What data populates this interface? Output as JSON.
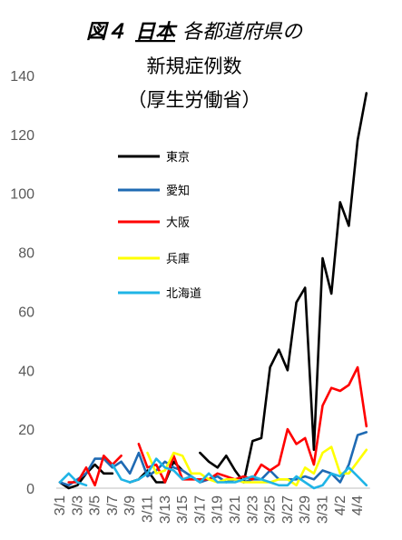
{
  "chart_data": {
    "type": "line",
    "title": {
      "fig_label": "図４",
      "country": "日本",
      "rest": "各都道府県の",
      "line2": "新規症例数",
      "line3": "（厚生労働省）"
    },
    "xlabel": "",
    "ylabel": "",
    "ylim": [
      0,
      140
    ],
    "yticks": [
      0,
      20,
      40,
      60,
      80,
      100,
      120,
      140
    ],
    "grid": false,
    "legend_position": "left-inside",
    "x": [
      "3/1",
      "3/2",
      "3/3",
      "3/4",
      "3/5",
      "3/6",
      "3/7",
      "3/8",
      "3/9",
      "3/10",
      "3/11",
      "3/12",
      "3/13",
      "3/14",
      "3/15",
      "3/16",
      "3/17",
      "3/18",
      "3/19",
      "3/20",
      "3/21",
      "3/22",
      "3/23",
      "3/24",
      "3/25",
      "3/26",
      "3/27",
      "3/28",
      "3/29",
      "3/30",
      "3/31",
      "4/1",
      "4/2",
      "4/3",
      "4/4",
      "4/5"
    ],
    "x_tick_labels": [
      "3/1",
      "3/3",
      "3/5",
      "3/7",
      "3/9",
      "3/11",
      "3/13",
      "3/15",
      "3/17",
      "3/19",
      "3/21",
      "3/23",
      "3/25",
      "3/27",
      "3/29",
      "3/31",
      "4/2",
      "4/4"
    ],
    "series": [
      {
        "name": "東京",
        "color": "#000000",
        "values": [
          2,
          0,
          1,
          5,
          8,
          5,
          5,
          null,
          2,
          3,
          6,
          2,
          2,
          9,
          6,
          null,
          12,
          9,
          7,
          11,
          6,
          2,
          16,
          17,
          41,
          47,
          40,
          63,
          68,
          13,
          78,
          66,
          97,
          89,
          118,
          134
        ]
      },
      {
        "name": "愛知",
        "color": "#1f6ab3",
        "values": [
          2,
          1,
          3,
          5,
          10,
          10,
          7,
          9,
          5,
          12,
          4,
          6,
          9,
          7,
          6,
          4,
          2,
          3,
          4,
          2,
          3,
          2,
          3,
          3,
          6,
          3,
          3,
          3,
          4,
          3,
          6,
          5,
          2,
          8,
          18,
          19
        ]
      },
      {
        "name": "大阪",
        "color": "#ff0000",
        "values": [
          null,
          2,
          2,
          7,
          1,
          11,
          8,
          11,
          null,
          15,
          7,
          8,
          2,
          11,
          3,
          3,
          3,
          3,
          5,
          4,
          3,
          4,
          3,
          8,
          6,
          8,
          20,
          15,
          17,
          8,
          28,
          34,
          33,
          35,
          41,
          21
        ]
      },
      {
        "name": "兵庫",
        "color": "#ffff00",
        "values": [
          null,
          null,
          null,
          null,
          null,
          null,
          null,
          null,
          null,
          null,
          12,
          5,
          6,
          12,
          11,
          5,
          5,
          3,
          2,
          3,
          3,
          2,
          2,
          2,
          2,
          3,
          3,
          1,
          7,
          5,
          12,
          14,
          5,
          5,
          9,
          13
        ]
      },
      {
        "name": "北海道",
        "color": "#1fb4e6",
        "values": [
          2,
          5,
          2,
          1,
          null,
          null,
          8,
          3,
          2,
          3,
          5,
          10,
          7,
          6,
          3,
          4,
          2,
          5,
          2,
          2,
          2,
          3,
          4,
          3,
          2,
          1,
          1,
          4,
          2,
          0,
          1,
          5,
          4,
          7,
          4,
          1
        ]
      }
    ]
  }
}
